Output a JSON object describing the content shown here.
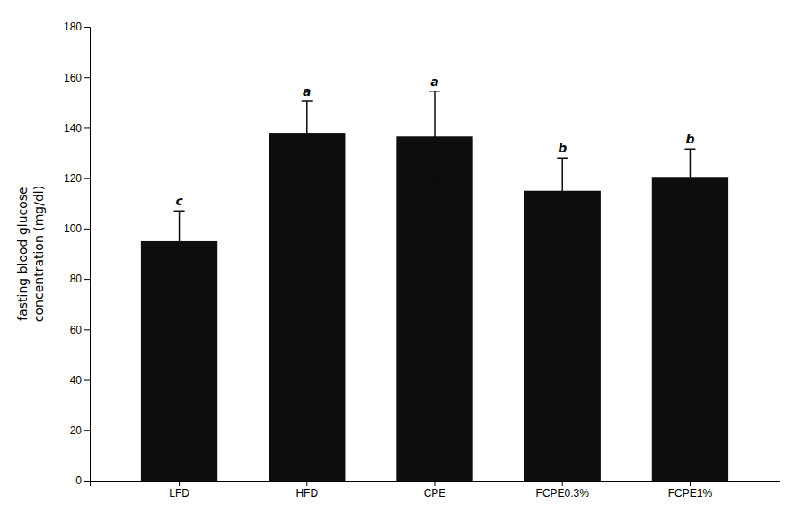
{
  "chart_data": {
    "type": "bar",
    "y_label": [
      "fasting blood glucose",
      "concentration (mg/dl)"
    ],
    "categories": [
      "LFD",
      "HFD",
      "CPE",
      "FCPE0.3%",
      "FCPE1%"
    ],
    "values": [
      95.0,
      138.0,
      136.5,
      115.0,
      120.5
    ],
    "errors": [
      12.0,
      12.5,
      18.0,
      13.0,
      11.0
    ],
    "annotations": [
      "c",
      "a",
      "a",
      "b",
      "b"
    ],
    "color": "#0d0d0d",
    "ylim": [
      0,
      180
    ],
    "yticks": [
      0,
      20,
      40,
      60,
      80,
      100,
      120,
      140,
      160,
      180
    ],
    "grid": false
  }
}
